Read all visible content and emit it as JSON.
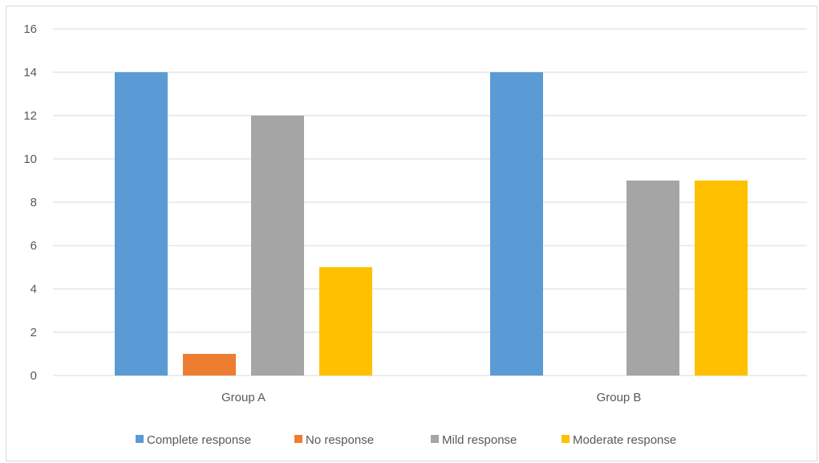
{
  "chart_data": {
    "type": "bar",
    "title": "",
    "xlabel": "",
    "ylabel": "",
    "categories": [
      "Group A",
      "Group B"
    ],
    "series": [
      {
        "name": "Complete response",
        "values": [
          14,
          14
        ],
        "color": "#5b9bd5"
      },
      {
        "name": "No response",
        "values": [
          1,
          0
        ],
        "color": "#ed7d31"
      },
      {
        "name": "Mild response",
        "values": [
          12,
          9
        ],
        "color": "#a5a5a5"
      },
      {
        "name": "Moderate response",
        "values": [
          5,
          9
        ],
        "color": "#ffc000"
      }
    ],
    "ylim": [
      0,
      16
    ],
    "yticks": [
      0,
      2,
      4,
      6,
      8,
      10,
      12,
      14,
      16
    ],
    "grid": true,
    "legend_position": "bottom",
    "gridline_color": "#d9d9d9",
    "text_color": "#595959"
  }
}
